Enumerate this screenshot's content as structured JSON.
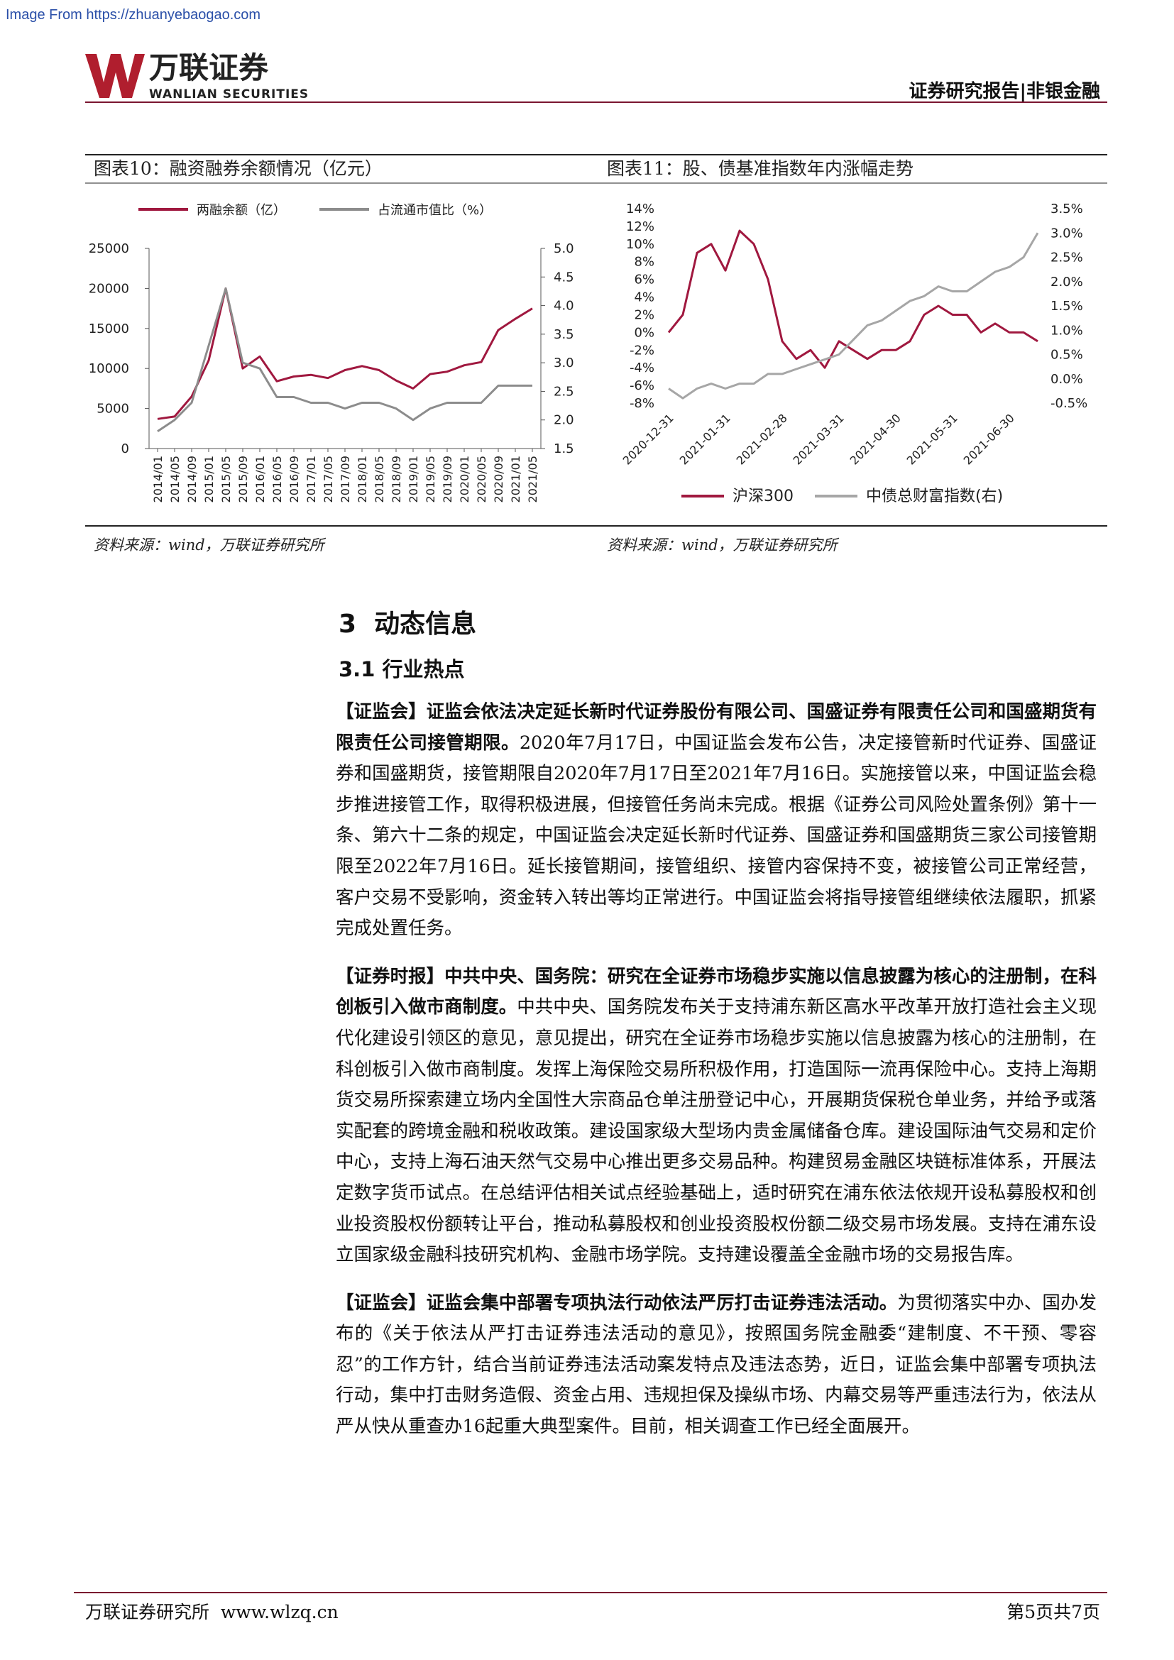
{
  "watermark": "Image From https://zhuanyebaogao.com",
  "header": {
    "logo_cn": "万联证券",
    "logo_en": "WANLIAN SECURITIES",
    "report_type": "证券研究报告|非银金融"
  },
  "chart_data": [
    {
      "type": "line",
      "title": "图表10：融资融券余额情况（亿元）",
      "source": "资料来源：wind，万联证券研究所",
      "categories": [
        "2014/01",
        "2014/05",
        "2014/09",
        "2015/01",
        "2015/05",
        "2015/09",
        "2016/01",
        "2016/05",
        "2016/09",
        "2017/01",
        "2017/05",
        "2017/09",
        "2018/01",
        "2018/05",
        "2018/09",
        "2019/01",
        "2019/05",
        "2019/09",
        "2020/01",
        "2020/05",
        "2020/09",
        "2021/01",
        "2021/05"
      ],
      "series": [
        {
          "name": "两融余额（亿）",
          "color": "#a0183f",
          "axis": "y",
          "values": [
            3700,
            4000,
            6500,
            11000,
            20000,
            10000,
            11500,
            8400,
            9000,
            9200,
            8800,
            9800,
            10300,
            9800,
            8500,
            7500,
            9300,
            9600,
            10400,
            10800,
            14800,
            16200,
            17500
          ]
        },
        {
          "name": "占流通市值比（%）",
          "color": "#8c8c8c",
          "axis": "y2",
          "values": [
            1.8,
            2.0,
            2.3,
            3.3,
            4.3,
            3.0,
            2.9,
            2.4,
            2.4,
            2.3,
            2.3,
            2.2,
            2.3,
            2.3,
            2.2,
            2.0,
            2.2,
            2.3,
            2.3,
            2.3,
            2.6,
            2.6,
            2.6
          ]
        }
      ],
      "ylim": [
        0,
        25000
      ],
      "yticks": [
        0,
        5000,
        10000,
        15000,
        20000,
        25000
      ],
      "y2lim": [
        1.5,
        5
      ],
      "y2ticks": [
        1.5,
        {
          "value": 2,
          "label": "2.0"
        },
        2.5,
        {
          "value": 3,
          "label": "3.0"
        },
        3.5,
        {
          "value": 4,
          "label": "4.0"
        },
        4.5,
        {
          "value": 5,
          "label": "5.0"
        }
      ],
      "legend": "top",
      "grid": false
    },
    {
      "type": "line",
      "title": "图表11：股、债基准指数年内涨幅走势",
      "source": "资料来源：wind，万联证券研究所",
      "categories": [
        "2020-12-31",
        null,
        null,
        null,
        "2021-01-31",
        null,
        null,
        null,
        "2021-02-28",
        null,
        null,
        null,
        "2021-03-31",
        null,
        null,
        null,
        "2021-04-30",
        null,
        null,
        null,
        "2021-05-31",
        null,
        null,
        null,
        "2021-06-30",
        null,
        null
      ],
      "series": [
        {
          "name": "沪深300",
          "color": "#a0183f",
          "axis": "y",
          "values": [
            0,
            2,
            9,
            10,
            7,
            11.5,
            10,
            6,
            -1,
            -3,
            -2,
            -4,
            -1,
            -2,
            -3,
            -2,
            -2,
            -1,
            2,
            3,
            2,
            2,
            0,
            1,
            0,
            0,
            -1
          ]
        },
        {
          "name": "中债总财富指数(右)",
          "color": "#a6a6a6",
          "axis": "y2",
          "values": [
            -0.2,
            -0.4,
            -0.2,
            -0.1,
            -0.2,
            -0.1,
            -0.1,
            0.1,
            0.1,
            0.2,
            0.3,
            0.4,
            0.5,
            0.8,
            1.1,
            1.2,
            1.4,
            1.6,
            1.7,
            1.9,
            1.8,
            1.8,
            2.0,
            2.2,
            2.3,
            2.5,
            3.0
          ]
        }
      ],
      "ylim": [
        -8,
        14
      ],
      "yticks": [
        {
          "value": -8,
          "label": "-8%"
        },
        {
          "value": -6,
          "label": "-6%"
        },
        {
          "value": -4,
          "label": "-4%"
        },
        {
          "value": -2,
          "label": "-2%"
        },
        {
          "value": 0,
          "label": "0%"
        },
        {
          "value": 2,
          "label": "2%"
        },
        {
          "value": 4,
          "label": "4%"
        },
        {
          "value": 6,
          "label": "6%"
        },
        {
          "value": 8,
          "label": "8%"
        },
        {
          "value": 10,
          "label": "10%"
        },
        {
          "value": 12,
          "label": "12%"
        },
        {
          "value": 14,
          "label": "14%"
        }
      ],
      "y2lim": [
        -0.5,
        3.5
      ],
      "y2ticks": [
        {
          "value": -0.5,
          "label": "-0.5%"
        },
        {
          "value": 0,
          "label": "0.0%"
        },
        {
          "value": 0.5,
          "label": "0.5%"
        },
        {
          "value": 1,
          "label": "1.0%"
        },
        {
          "value": 1.5,
          "label": "1.5%"
        },
        {
          "value": 2,
          "label": "2.0%"
        },
        {
          "value": 2.5,
          "label": "2.5%"
        },
        {
          "value": 3,
          "label": "3.0%"
        },
        {
          "value": 3.5,
          "label": "3.5%"
        }
      ],
      "legend": "bottom",
      "grid": false
    }
  ],
  "section": {
    "title": "3  动态信息",
    "subsection": "3.1 行业热点"
  },
  "paragraphs": [
    {
      "lead": "【证监会】证监会依法决定延长新时代证券股份有限公司、国盛证券有限责任公司和国盛期货有限责任公司接管期限。",
      "body": "2020年7月17日，中国证监会发布公告，决定接管新时代证券、国盛证券和国盛期货，接管期限自2020年7月17日至2021年7月16日。实施接管以来，中国证监会稳步推进接管工作，取得积极进展，但接管任务尚未完成。根据《证券公司风险处置条例》第十一条、第六十二条的规定，中国证监会决定延长新时代证券、国盛证券和国盛期货三家公司接管期限至2022年7月16日。延长接管期间，接管组织、接管内容保持不变，被接管公司正常经营，客户交易不受影响，资金转入转出等均正常进行。中国证监会将指导接管组继续依法履职，抓紧完成处置任务。"
    },
    {
      "lead": "【证券时报】中共中央、国务院：研究在全证券市场稳步实施以信息披露为核心的注册制，在科创板引入做市商制度。",
      "body": "中共中央、国务院发布关于支持浦东新区高水平改革开放打造社会主义现代化建设引领区的意见，意见提出，研究在全证券市场稳步实施以信息披露为核心的注册制，在科创板引入做市商制度。发挥上海保险交易所积极作用，打造国际一流再保险中心。支持上海期货交易所探索建立场内全国性大宗商品仓单注册登记中心，开展期货保税仓单业务，并给予或落实配套的跨境金融和税收政策。建设国家级大型场内贵金属储备仓库。建设国际油气交易和定价中心，支持上海石油天然气交易中心推出更多交易品种。构建贸易金融区块链标准体系，开展法定数字货币试点。在总结评估相关试点经验基础上，适时研究在浦东依法依规开设私募股权和创业投资股权份额转让平台，推动私募股权和创业投资股权份额二级交易市场发展。支持在浦东设立国家级金融科技研究机构、金融市场学院。支持建设覆盖全金融市场的交易报告库。"
    },
    {
      "lead": "【证监会】证监会集中部署专项执法行动依法严厉打击证券违法活动。",
      "body": "为贯彻落实中办、国办发布的《关于依法从严打击证券违法活动的意见》，按照国务院金融委“建制度、不干预、零容忍”的工作方针，结合当前证券违法活动案发特点及违法态势，近日，证监会集中部署专项执法行动，集中打击财务造假、资金占用、违规担保及操纵市场、内幕交易等严重违法行为，依法从严从快从重查办16起重大典型案件。目前，相关调查工作已经全面展开。"
    }
  ],
  "footer": {
    "left": "万联证券研究所  www.wlzq.cn",
    "right": "第5页共7页"
  }
}
